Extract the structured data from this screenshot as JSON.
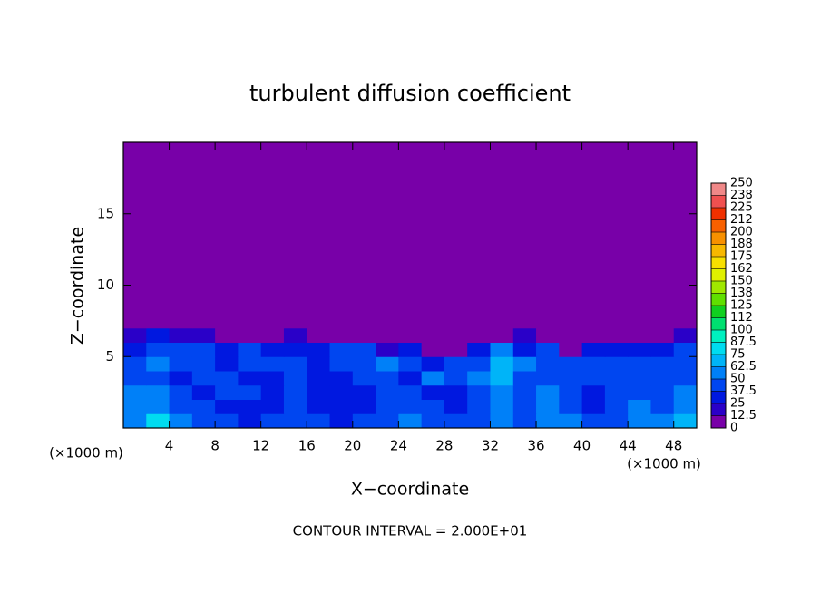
{
  "chart_data": {
    "type": "heatmap",
    "title": "turbulent diffusion coefficient",
    "xlabel": "X−coordinate",
    "ylabel": "Z−coordinate",
    "x_unit": "(×1000 m)",
    "y_unit": "(×1000 m)",
    "note": "CONTOUR INTERVAL = 2.000E+01",
    "xlim": [
      0,
      50
    ],
    "ylim": [
      0,
      20
    ],
    "xticks": [
      4,
      8,
      12,
      16,
      20,
      24,
      28,
      32,
      36,
      40,
      44,
      48
    ],
    "yticks": [
      5,
      10,
      15
    ],
    "x_edges": [
      0,
      2,
      4,
      6,
      8,
      10,
      12,
      14,
      16,
      18,
      20,
      22,
      24,
      26,
      28,
      30,
      32,
      34,
      36,
      38,
      40,
      42,
      44,
      46,
      48,
      50
    ],
    "z_edges": [
      0,
      1,
      2,
      3,
      4,
      5,
      6,
      7,
      20
    ],
    "values": [
      [
        62,
        75,
        55,
        45,
        40,
        35,
        40,
        45,
        40,
        35,
        40,
        45,
        50,
        45,
        40,
        45,
        55,
        45,
        62,
        50,
        40,
        45,
        55,
        50,
        70
      ],
      [
        55,
        60,
        45,
        40,
        35,
        30,
        35,
        45,
        35,
        30,
        35,
        40,
        45,
        40,
        35,
        40,
        55,
        40,
        55,
        45,
        30,
        40,
        50,
        45,
        55
      ],
      [
        50,
        55,
        40,
        35,
        45,
        40,
        30,
        40,
        30,
        30,
        35,
        45,
        40,
        35,
        30,
        45,
        60,
        40,
        50,
        45,
        35,
        40,
        45,
        40,
        50
      ],
      [
        45,
        45,
        30,
        40,
        45,
        35,
        30,
        45,
        30,
        35,
        40,
        40,
        35,
        50,
        40,
        50,
        65,
        45,
        45,
        40,
        40,
        45,
        40,
        45,
        45
      ],
      [
        40,
        50,
        40,
        45,
        35,
        45,
        40,
        40,
        35,
        40,
        45,
        50,
        40,
        35,
        45,
        45,
        70,
        50,
        40,
        45,
        40,
        40,
        45,
        45,
        40
      ],
      [
        35,
        40,
        45,
        40,
        35,
        40,
        35,
        30,
        30,
        45,
        40,
        20,
        35,
        10,
        5,
        35,
        55,
        35,
        40,
        5,
        30,
        35,
        30,
        35,
        40
      ],
      [
        20,
        25,
        20,
        15,
        10,
        5,
        5,
        20,
        10,
        5,
        5,
        5,
        5,
        5,
        10,
        10,
        5,
        15,
        5,
        5,
        5,
        5,
        5,
        10,
        20
      ],
      [
        0,
        0,
        0,
        0,
        0,
        0,
        0,
        0,
        0,
        0,
        0,
        0,
        0,
        0,
        0,
        0,
        0,
        0,
        0,
        0,
        0,
        0,
        0,
        0,
        0
      ]
    ],
    "colorbar_ticks": [
      0,
      12.5,
      25,
      37.5,
      50,
      62.5,
      75,
      87.5,
      100,
      {
        "value": 112.5,
        "label": "112"
      },
      125,
      {
        "value": 137.5,
        "label": "138"
      },
      150,
      {
        "value": 162.5,
        "label": "162"
      },
      175,
      {
        "value": 187.5,
        "label": "188"
      },
      200,
      {
        "value": 212.5,
        "label": "212"
      },
      225,
      {
        "value": 237.5,
        "label": "238"
      },
      250
    ],
    "colors": [
      "#7800a8",
      "#2a00c8",
      "#0018e0",
      "#0046f0",
      "#0080f8",
      "#00b4f8",
      "#00dcf0",
      "#00f0c0",
      "#00e070",
      "#10d020",
      "#60e000",
      "#a0e800",
      "#e0f000",
      "#f8e000",
      "#f8b800",
      "#f89000",
      "#f86000",
      "#f03000",
      "#f05050",
      "#f08888"
    ]
  }
}
